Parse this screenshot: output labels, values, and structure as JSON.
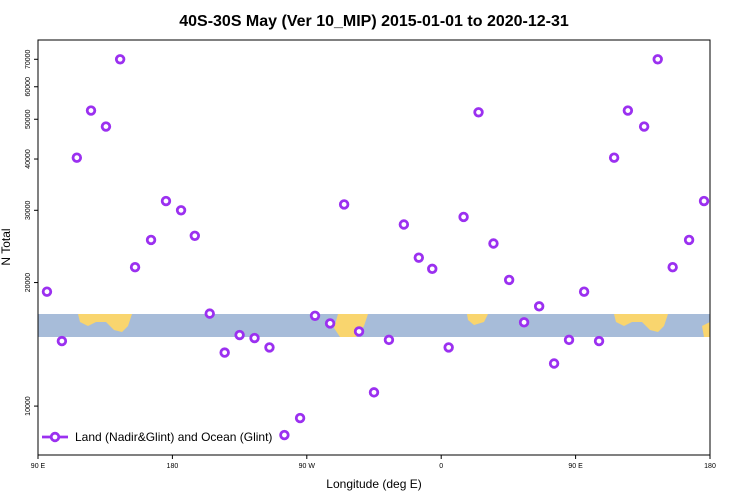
{
  "chart_data": {
    "type": "scatter",
    "title": "40S-30S May (Ver 10_MIP)   2015-01-01 to 2020-12-31",
    "x_label": "Longitude (deg E)",
    "y_label": "N Total",
    "xlim": [
      90,
      540
    ],
    "ylim": [
      7600,
      78000
    ],
    "y_log": true,
    "xticks": [
      {
        "value": 90,
        "label": "90 E"
      },
      180,
      {
        "value": 270,
        "label": "90 W"
      },
      {
        "value": 360,
        "label": "0"
      },
      {
        "value": 450,
        "label": "90 E"
      },
      {
        "value": 540,
        "label": "180"
      }
    ],
    "yticks": [
      10000,
      20000,
      30000,
      40000,
      50000,
      60000,
      70000
    ],
    "legend_position": "lower left",
    "series": [
      {
        "name": "Land (Nadir&Glint) and Ocean (Glint)",
        "color": "#9b30f0",
        "x": [
          96,
          106,
          116,
          125.5,
          135.5,
          145,
          155,
          165.7,
          175.7,
          185.8,
          195,
          205,
          215,
          225,
          235,
          245,
          255,
          265.5,
          275.5,
          285.6,
          295,
          305,
          315,
          325,
          335,
          345,
          354,
          365,
          375,
          385,
          395,
          405.5,
          415.5,
          425.6,
          435.6,
          445.6,
          455.7,
          465.7,
          475.8,
          485,
          495.9,
          505,
          515,
          526,
          536
        ],
        "values": [
          19000,
          14400,
          40300,
          52500,
          48000,
          70000,
          21800,
          25400,
          31600,
          30000,
          26000,
          16800,
          13500,
          14900,
          14650,
          13900,
          8500,
          9350,
          16600,
          15900,
          31000,
          15200,
          10800,
          14500,
          27700,
          23000,
          21600,
          13900,
          28900,
          52000,
          24900,
          20300,
          16000,
          17500,
          12700,
          14500,
          19000,
          14400,
          40300,
          52500,
          48000,
          70000,
          21800,
          25400,
          31600
        ]
      }
    ]
  }
}
